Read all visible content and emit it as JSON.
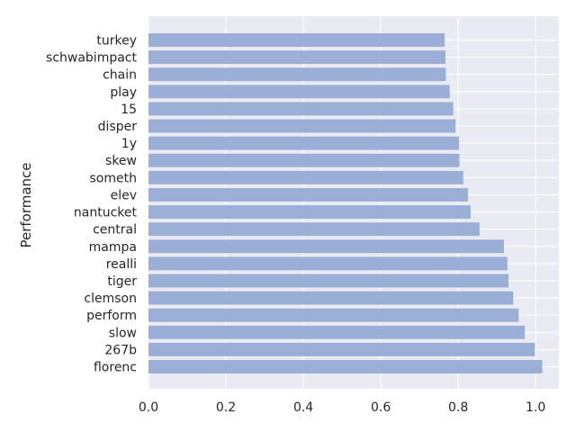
{
  "chart_data": {
    "type": "bar",
    "orientation": "horizontal",
    "ylabel": "Performance",
    "xlabel": "",
    "xlim": [
      0,
      1.06
    ],
    "xticks": [
      "0.0",
      "0.2",
      "0.4",
      "0.6",
      "0.8",
      "1.0"
    ],
    "grid": true,
    "colors": {
      "background": "#eaeaf2",
      "grid": "#ffffff",
      "bar": "#9aaed6"
    },
    "categories": [
      "turkey",
      "schwabimpact",
      "chain",
      "play",
      "15",
      "disper",
      "1y",
      "skew",
      "someth",
      "elev",
      "nantucket",
      "central",
      "mampa",
      "realli",
      "tiger",
      "clemson",
      "perform",
      "slow",
      "267b",
      "florenc"
    ],
    "values": [
      0.765,
      0.767,
      0.768,
      0.778,
      0.787,
      0.793,
      0.802,
      0.803,
      0.813,
      0.825,
      0.832,
      0.855,
      0.918,
      0.927,
      0.93,
      0.942,
      0.956,
      0.972,
      0.998,
      1.017
    ]
  }
}
